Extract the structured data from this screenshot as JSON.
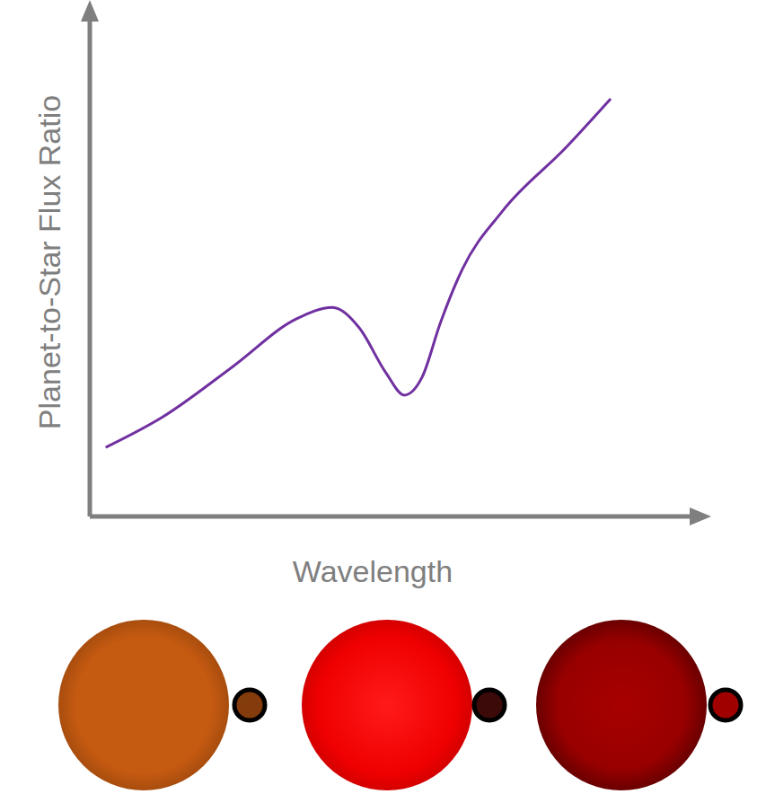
{
  "chart_data": {
    "type": "line",
    "x_label": "Wavelength",
    "y_label": "Planet-to-Star Flux Ratio",
    "x": [
      0.26,
      1.18,
      2.35,
      3.38,
      3.97,
      4.41,
      4.85,
      5.15,
      5.44,
      5.74,
      6.1,
      6.76,
      7.79,
      8.53
    ],
    "values": [
      1.36,
      1.95,
      2.96,
      3.89,
      4.12,
      3.72,
      2.83,
      2.39,
      2.74,
      3.81,
      4.87,
      6.02,
      7.26,
      8.23
    ],
    "color": "#7030a0",
    "xlim": [
      0,
      10
    ],
    "ylim": [
      0,
      10
    ],
    "tick_labels": false
  }
}
